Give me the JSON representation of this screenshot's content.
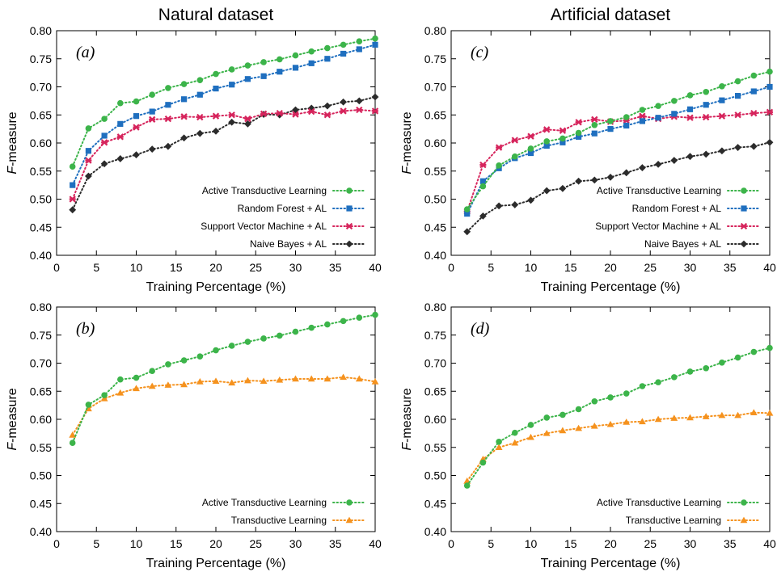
{
  "figure": {
    "column_titles": [
      "Natural dataset",
      "Artificial dataset"
    ]
  },
  "colors": {
    "atl": "#3cb44a",
    "rf": "#1f6fbf",
    "svm": "#d6245c",
    "nb": "#2b2b2b",
    "tl": "#f5921e"
  },
  "chart_data": [
    {
      "id": "a",
      "type": "line",
      "panel_label": "(a)",
      "xlabel": "Training Percentage (%)",
      "ylabel": "F-measure",
      "xlim": [
        0,
        40
      ],
      "ylim": [
        0.4,
        0.8
      ],
      "xticks": [
        0,
        5,
        10,
        15,
        20,
        25,
        30,
        35,
        40
      ],
      "yticks": [
        0.4,
        0.45,
        0.5,
        0.55,
        0.6,
        0.65,
        0.7,
        0.75,
        0.8
      ],
      "grid": false,
      "legend_position": "bottom-right",
      "x": [
        2,
        4,
        6,
        8,
        10,
        12,
        14,
        16,
        18,
        20,
        22,
        24,
        26,
        28,
        30,
        32,
        34,
        36,
        38,
        40
      ],
      "series": [
        {
          "name": "Active Transductive Learning",
          "color_key": "atl",
          "marker": "circle",
          "values": [
            0.558,
            0.626,
            0.643,
            0.671,
            0.674,
            0.686,
            0.698,
            0.705,
            0.712,
            0.723,
            0.731,
            0.738,
            0.744,
            0.749,
            0.756,
            0.763,
            0.769,
            0.775,
            0.781,
            0.786
          ]
        },
        {
          "name": "Random Forest + AL",
          "color_key": "rf",
          "marker": "square",
          "values": [
            0.525,
            0.586,
            0.613,
            0.634,
            0.648,
            0.656,
            0.668,
            0.678,
            0.686,
            0.697,
            0.704,
            0.714,
            0.719,
            0.727,
            0.734,
            0.742,
            0.75,
            0.759,
            0.767,
            0.775
          ]
        },
        {
          "name": "Support Vector Machine + AL",
          "color_key": "svm",
          "marker": "cross",
          "values": [
            0.5,
            0.569,
            0.601,
            0.611,
            0.628,
            0.642,
            0.643,
            0.647,
            0.646,
            0.648,
            0.65,
            0.643,
            0.652,
            0.653,
            0.651,
            0.656,
            0.65,
            0.657,
            0.659,
            0.657
          ]
        },
        {
          "name": "Naive Bayes + AL",
          "color_key": "nb",
          "marker": "diamond",
          "values": [
            0.481,
            0.541,
            0.563,
            0.572,
            0.579,
            0.589,
            0.594,
            0.609,
            0.617,
            0.621,
            0.637,
            0.634,
            0.651,
            0.65,
            0.659,
            0.662,
            0.666,
            0.673,
            0.675,
            0.682
          ]
        }
      ]
    },
    {
      "id": "c",
      "type": "line",
      "panel_label": "(c)",
      "xlabel": "Training Percentage (%)",
      "ylabel": "F-measure",
      "xlim": [
        0,
        40
      ],
      "ylim": [
        0.4,
        0.8
      ],
      "xticks": [
        0,
        5,
        10,
        15,
        20,
        25,
        30,
        35,
        40
      ],
      "yticks": [
        0.4,
        0.45,
        0.5,
        0.55,
        0.6,
        0.65,
        0.7,
        0.75,
        0.8
      ],
      "grid": false,
      "legend_position": "bottom-right",
      "x": [
        2,
        4,
        6,
        8,
        10,
        12,
        14,
        16,
        18,
        20,
        22,
        24,
        26,
        28,
        30,
        32,
        34,
        36,
        38,
        40
      ],
      "series": [
        {
          "name": "Active Transductive Learning",
          "color_key": "atl",
          "marker": "circle",
          "values": [
            0.482,
            0.523,
            0.56,
            0.576,
            0.59,
            0.603,
            0.608,
            0.618,
            0.632,
            0.639,
            0.646,
            0.659,
            0.666,
            0.675,
            0.685,
            0.691,
            0.701,
            0.71,
            0.72,
            0.727
          ]
        },
        {
          "name": "Random Forest + AL",
          "color_key": "rf",
          "marker": "square",
          "values": [
            0.474,
            0.532,
            0.555,
            0.573,
            0.582,
            0.595,
            0.601,
            0.611,
            0.617,
            0.625,
            0.631,
            0.639,
            0.645,
            0.652,
            0.66,
            0.668,
            0.676,
            0.684,
            0.692,
            0.7
          ]
        },
        {
          "name": "Support Vector Machine + AL",
          "color_key": "svm",
          "marker": "cross",
          "values": [
            0.478,
            0.561,
            0.592,
            0.605,
            0.612,
            0.624,
            0.622,
            0.637,
            0.642,
            0.638,
            0.64,
            0.648,
            0.643,
            0.647,
            0.645,
            0.646,
            0.648,
            0.65,
            0.653,
            0.655
          ]
        },
        {
          "name": "Naive Bayes + AL",
          "color_key": "nb",
          "marker": "diamond",
          "values": [
            0.442,
            0.47,
            0.488,
            0.49,
            0.498,
            0.515,
            0.519,
            0.532,
            0.534,
            0.539,
            0.547,
            0.556,
            0.562,
            0.569,
            0.576,
            0.58,
            0.586,
            0.592,
            0.594,
            0.601
          ]
        }
      ]
    },
    {
      "id": "b",
      "type": "line",
      "panel_label": "(b)",
      "xlabel": "Training Percentage (%)",
      "ylabel": "F-measure",
      "xlim": [
        0,
        40
      ],
      "ylim": [
        0.4,
        0.8
      ],
      "xticks": [
        0,
        5,
        10,
        15,
        20,
        25,
        30,
        35,
        40
      ],
      "yticks": [
        0.4,
        0.45,
        0.5,
        0.55,
        0.6,
        0.65,
        0.7,
        0.75,
        0.8
      ],
      "grid": false,
      "legend_position": "bottom-right",
      "x": [
        2,
        4,
        6,
        8,
        10,
        12,
        14,
        16,
        18,
        20,
        22,
        24,
        26,
        28,
        30,
        32,
        34,
        36,
        38,
        40
      ],
      "series": [
        {
          "name": "Active Transductive Learning",
          "color_key": "atl",
          "marker": "circle",
          "values": [
            0.558,
            0.626,
            0.643,
            0.671,
            0.674,
            0.686,
            0.698,
            0.705,
            0.712,
            0.723,
            0.731,
            0.738,
            0.744,
            0.749,
            0.756,
            0.763,
            0.769,
            0.775,
            0.781,
            0.786
          ]
        },
        {
          "name": "Transductive Learning",
          "color_key": "tl",
          "marker": "triangle",
          "values": [
            0.572,
            0.619,
            0.637,
            0.647,
            0.655,
            0.659,
            0.661,
            0.662,
            0.667,
            0.668,
            0.665,
            0.669,
            0.668,
            0.67,
            0.672,
            0.672,
            0.672,
            0.675,
            0.672,
            0.667
          ]
        }
      ]
    },
    {
      "id": "d",
      "type": "line",
      "panel_label": "(d)",
      "xlabel": "Training Percentage (%)",
      "ylabel": "F-measure",
      "xlim": [
        0,
        40
      ],
      "ylim": [
        0.4,
        0.8
      ],
      "xticks": [
        0,
        5,
        10,
        15,
        20,
        25,
        30,
        35,
        40
      ],
      "yticks": [
        0.4,
        0.45,
        0.5,
        0.55,
        0.6,
        0.65,
        0.7,
        0.75,
        0.8
      ],
      "grid": false,
      "legend_position": "bottom-right",
      "x": [
        2,
        4,
        6,
        8,
        10,
        12,
        14,
        16,
        18,
        20,
        22,
        24,
        26,
        28,
        30,
        32,
        34,
        36,
        38,
        40
      ],
      "series": [
        {
          "name": "Active Transductive Learning",
          "color_key": "atl",
          "marker": "circle",
          "values": [
            0.482,
            0.523,
            0.56,
            0.576,
            0.59,
            0.603,
            0.608,
            0.618,
            0.632,
            0.639,
            0.646,
            0.659,
            0.666,
            0.675,
            0.685,
            0.691,
            0.701,
            0.71,
            0.72,
            0.727
          ]
        },
        {
          "name": "Transductive Learning",
          "color_key": "tl",
          "marker": "triangle",
          "values": [
            0.49,
            0.529,
            0.55,
            0.558,
            0.568,
            0.575,
            0.58,
            0.584,
            0.588,
            0.591,
            0.595,
            0.596,
            0.6,
            0.602,
            0.603,
            0.605,
            0.607,
            0.607,
            0.612,
            0.611
          ]
        }
      ]
    }
  ]
}
